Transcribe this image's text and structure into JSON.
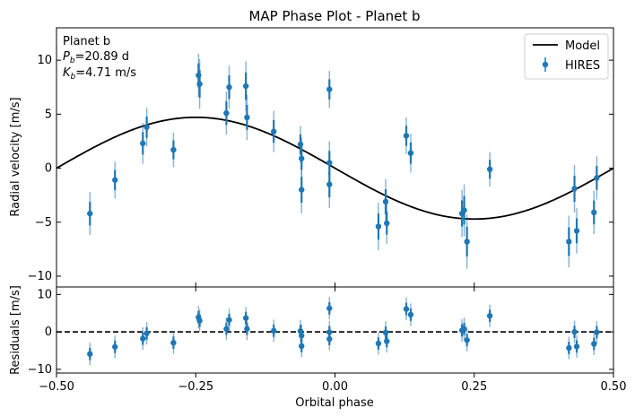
{
  "chart_data": [
    {
      "type": "scatter",
      "title": "MAP Phase Plot - Planet b",
      "xlabel": "",
      "ylabel": "Radial velocity [m/s]",
      "xlim": [
        -0.5,
        0.5
      ],
      "ylim": [
        -11,
        13
      ],
      "yticks": [
        10,
        5,
        0,
        -5,
        -10
      ],
      "xticks": [
        -0.5,
        -0.25,
        0.0,
        0.25,
        0.5
      ],
      "annotation": {
        "line1": "Planet b",
        "line2": "Pb=20.89 d",
        "line3": "Kb=4.71 m/s"
      },
      "legend": {
        "position": "top-right",
        "entries": [
          {
            "label": "Model",
            "kind": "line"
          },
          {
            "label": "HIRES",
            "kind": "errorbar"
          }
        ]
      },
      "model": {
        "name": "Model",
        "amplitude": 4.71,
        "form": "-K*sin(2*pi*phase)",
        "color": "#000000"
      },
      "series": [
        {
          "name": "HIRES",
          "color": "#1f77b4",
          "points": [
            {
              "x": -0.44,
              "y": -4.2,
              "err": 2.0
            },
            {
              "x": -0.395,
              "y": -1.1,
              "err": 1.7
            },
            {
              "x": -0.345,
              "y": 2.3,
              "err": 1.9
            },
            {
              "x": -0.338,
              "y": 3.8,
              "err": 1.8
            },
            {
              "x": -0.29,
              "y": 1.7,
              "err": 1.6
            },
            {
              "x": -0.245,
              "y": 8.6,
              "err": 2.0
            },
            {
              "x": -0.243,
              "y": 7.8,
              "err": 2.3
            },
            {
              "x": -0.195,
              "y": 5.1,
              "err": 2.0
            },
            {
              "x": -0.19,
              "y": 7.5,
              "err": 2.0
            },
            {
              "x": -0.16,
              "y": 7.6,
              "err": 2.3
            },
            {
              "x": -0.158,
              "y": 4.7,
              "err": 2.1
            },
            {
              "x": -0.11,
              "y": 3.4,
              "err": 1.9
            },
            {
              "x": -0.062,
              "y": 2.2,
              "err": 1.7
            },
            {
              "x": -0.06,
              "y": 0.9,
              "err": 1.9
            },
            {
              "x": -0.06,
              "y": -2.0,
              "err": 2.2
            },
            {
              "x": -0.01,
              "y": 7.3,
              "err": 1.7
            },
            {
              "x": -0.01,
              "y": 0.5,
              "err": 2.0
            },
            {
              "x": -0.01,
              "y": -1.5,
              "err": 2.2
            },
            {
              "x": 0.078,
              "y": -5.4,
              "err": 2.2
            },
            {
              "x": 0.091,
              "y": -3.1,
              "err": 2.1
            },
            {
              "x": 0.093,
              "y": -5.1,
              "err": 1.9
            },
            {
              "x": 0.128,
              "y": 3.0,
              "err": 1.7
            },
            {
              "x": 0.136,
              "y": 1.4,
              "err": 1.8
            },
            {
              "x": 0.228,
              "y": -4.2,
              "err": 2.2
            },
            {
              "x": 0.232,
              "y": -3.9,
              "err": 2.4
            },
            {
              "x": 0.237,
              "y": -6.8,
              "err": 2.5
            },
            {
              "x": 0.278,
              "y": -0.1,
              "err": 1.6
            },
            {
              "x": 0.42,
              "y": -6.8,
              "err": 2.4
            },
            {
              "x": 0.43,
              "y": -1.9,
              "err": 2.2
            },
            {
              "x": 0.434,
              "y": -5.8,
              "err": 2.1
            },
            {
              "x": 0.465,
              "y": -4.1,
              "err": 2.0
            },
            {
              "x": 0.47,
              "y": -0.9,
              "err": 2.0
            }
          ]
        }
      ]
    },
    {
      "type": "scatter",
      "title": "",
      "xlabel": "Orbital phase",
      "ylabel": "Residuals [m/s]",
      "xlim": [
        -0.5,
        0.5
      ],
      "ylim": [
        -11,
        12
      ],
      "yticks": [
        10,
        0,
        -10
      ],
      "xticks": [
        -0.5,
        -0.25,
        0.0,
        0.25,
        0.5
      ],
      "xtick_labels": [
        "−0.50",
        "−0.25",
        "0.00",
        "0.25",
        "0.50"
      ],
      "reference_line": {
        "y": 0,
        "style": "dashed",
        "color": "#000000"
      },
      "series": [
        {
          "name": "HIRES",
          "color": "#1f77b4",
          "points": [
            {
              "x": -0.44,
              "y": -5.9,
              "err": 3.0
            },
            {
              "x": -0.395,
              "y": -4.0,
              "err": 3.0
            },
            {
              "x": -0.345,
              "y": -1.8,
              "err": 3.0
            },
            {
              "x": -0.338,
              "y": -0.4,
              "err": 3.0
            },
            {
              "x": -0.29,
              "y": -2.9,
              "err": 3.0
            },
            {
              "x": -0.245,
              "y": 3.9,
              "err": 3.0
            },
            {
              "x": -0.243,
              "y": 3.0,
              "err": 3.0
            },
            {
              "x": -0.195,
              "y": 0.8,
              "err": 3.0
            },
            {
              "x": -0.19,
              "y": 3.2,
              "err": 3.0
            },
            {
              "x": -0.16,
              "y": 3.7,
              "err": 3.0
            },
            {
              "x": -0.158,
              "y": 0.8,
              "err": 3.0
            },
            {
              "x": -0.11,
              "y": 0.3,
              "err": 3.0
            },
            {
              "x": -0.062,
              "y": 0.2,
              "err": 3.0
            },
            {
              "x": -0.06,
              "y": -1.0,
              "err": 3.0
            },
            {
              "x": -0.06,
              "y": -3.8,
              "err": 3.0
            },
            {
              "x": -0.01,
              "y": 6.3,
              "err": 3.0
            },
            {
              "x": -0.01,
              "y": -0.1,
              "err": 3.0
            },
            {
              "x": -0.01,
              "y": -1.9,
              "err": 3.0
            },
            {
              "x": 0.078,
              "y": -3.1,
              "err": 3.0
            },
            {
              "x": 0.091,
              "y": -0.2,
              "err": 3.0
            },
            {
              "x": 0.093,
              "y": -2.5,
              "err": 3.0
            },
            {
              "x": 0.128,
              "y": 6.1,
              "err": 3.0
            },
            {
              "x": 0.136,
              "y": 4.6,
              "err": 3.0
            },
            {
              "x": 0.228,
              "y": 0.4,
              "err": 3.0
            },
            {
              "x": 0.232,
              "y": 0.8,
              "err": 3.0
            },
            {
              "x": 0.237,
              "y": -2.2,
              "err": 3.0
            },
            {
              "x": 0.278,
              "y": 4.3,
              "err": 3.0
            },
            {
              "x": 0.42,
              "y": -4.3,
              "err": 3.0
            },
            {
              "x": 0.43,
              "y": 0.0,
              "err": 3.0
            },
            {
              "x": 0.434,
              "y": -3.9,
              "err": 3.0
            },
            {
              "x": 0.465,
              "y": -3.2,
              "err": 3.0
            },
            {
              "x": 0.47,
              "y": -0.1,
              "err": 3.0
            }
          ]
        }
      ]
    }
  ]
}
